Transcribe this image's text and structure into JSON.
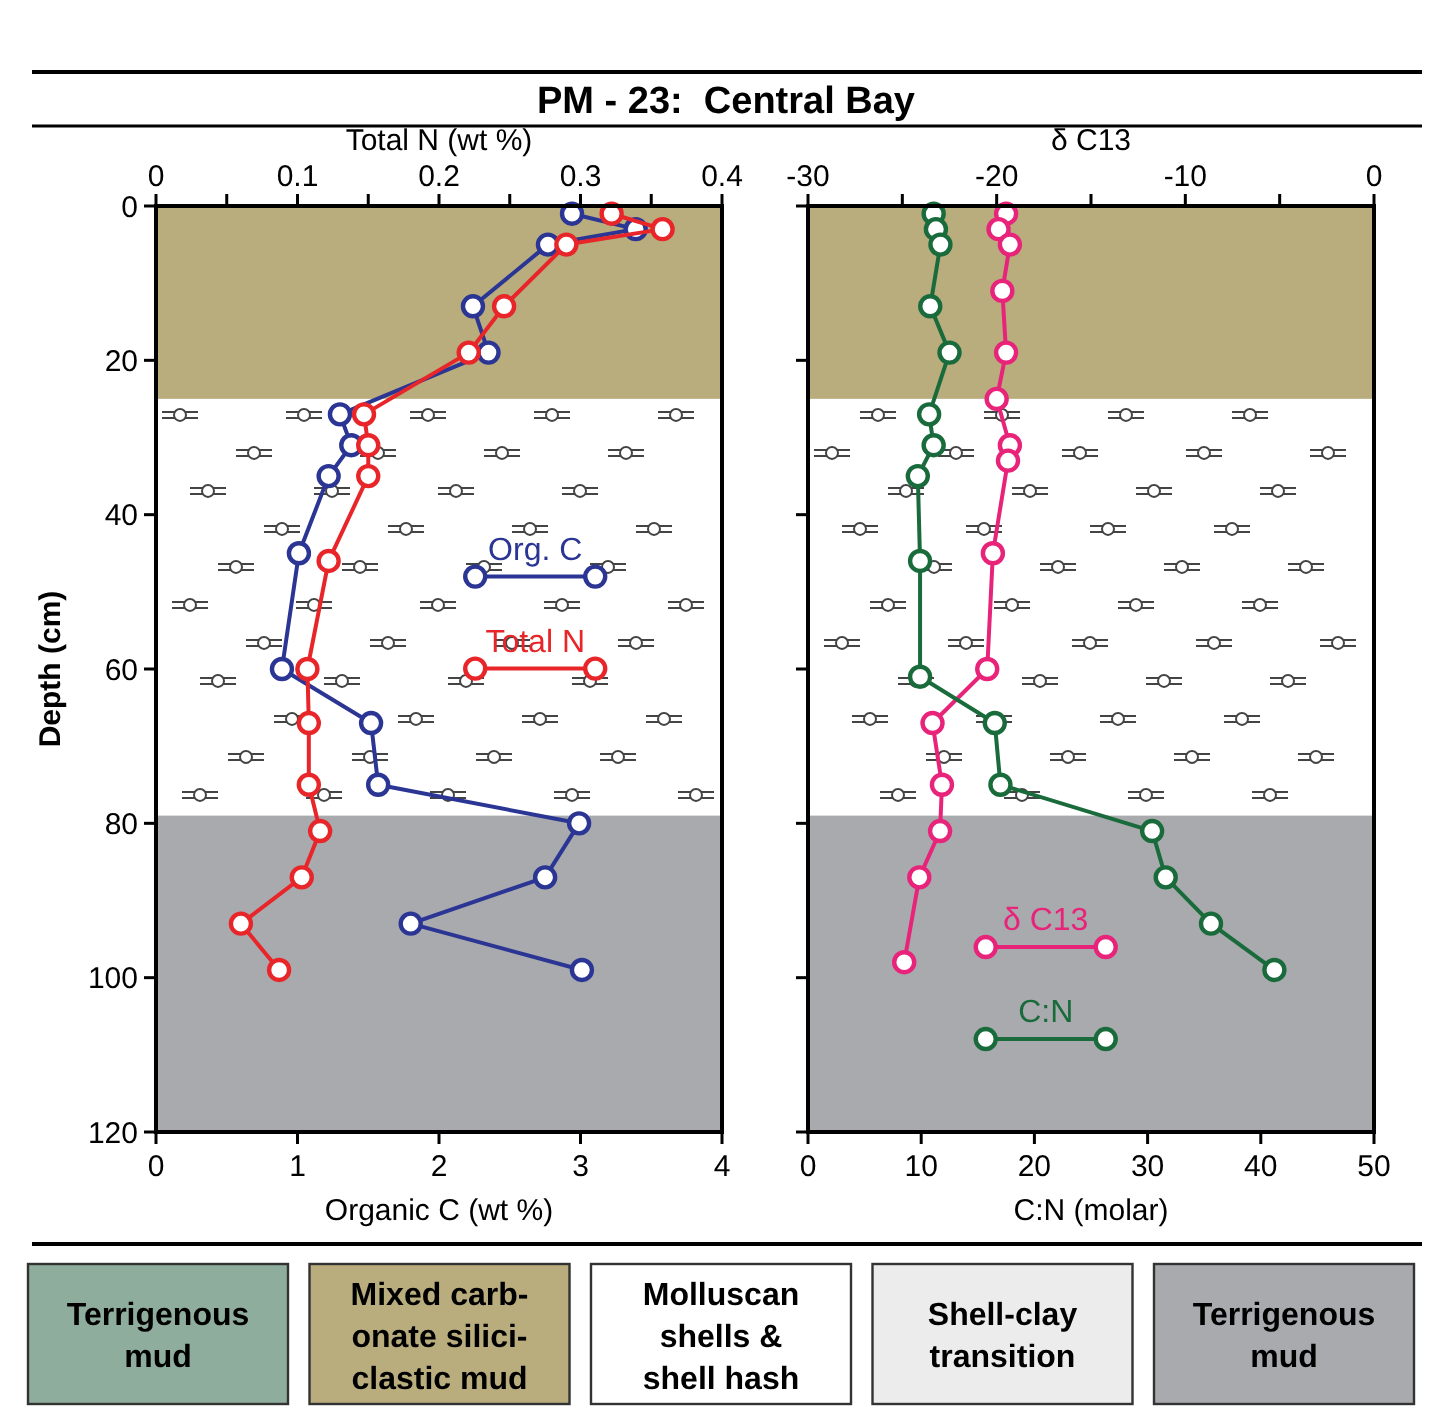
{
  "chart_data": [
    {
      "type": "line",
      "title": "PM - 23:  Central Bay",
      "xlabel": "Organic C (wt %)",
      "x2label": "Total N (wt %)",
      "ylabel": "Depth (cm)",
      "xlim": [
        0,
        4
      ],
      "xticks": [
        0,
        1,
        2,
        3,
        4
      ],
      "x2lim": [
        0,
        0.4
      ],
      "x2ticks": [
        0,
        {
          "value": 0.05,
          "label": null
        },
        0.1,
        {
          "value": 0.15,
          "label": null
        },
        0.2,
        {
          "value": 0.25,
          "label": null
        },
        0.3,
        {
          "value": 0.35,
          "label": null
        },
        0.4
      ],
      "ylim": [
        120,
        0
      ],
      "yticks": [
        0,
        20,
        40,
        60,
        80,
        100,
        120
      ],
      "marker": "circle",
      "legend": "right",
      "bands": [
        {
          "axis": "y",
          "from": 0,
          "to": 25,
          "color": "#b9ac7d"
        },
        {
          "axis": "y",
          "from": 25,
          "to": 79,
          "color": "#ffffff"
        },
        {
          "axis": "y",
          "from": 79,
          "to": 120,
          "color": "#a9aaae"
        }
      ],
      "series": [
        {
          "name": "Org. C",
          "color": "#2b3594",
          "x": [
            2.94,
            3.39,
            2.77,
            2.24,
            2.35,
            1.3,
            1.38,
            1.22,
            1.01,
            0.89,
            1.52,
            1.57,
            2.99,
            2.75,
            1.8,
            3.01
          ],
          "values": [
            1,
            3,
            5,
            13,
            19,
            27,
            31,
            35,
            45,
            60,
            67,
            75,
            80,
            87,
            93,
            99
          ]
        },
        {
          "name": "Total N",
          "color": "#e8262a",
          "axis": "x2",
          "x": [
            0.322,
            0.358,
            0.29,
            0.246,
            0.221,
            0.147,
            0.15,
            0.15,
            0.122,
            0.107,
            0.108,
            0.108,
            0.116,
            0.103,
            0.06,
            0.087
          ],
          "values": [
            1,
            3,
            5,
            13,
            19,
            27,
            31,
            35,
            46,
            60,
            67,
            75,
            81,
            87,
            93,
            99
          ]
        }
      ]
    },
    {
      "type": "line",
      "xlabel": "C:N (molar)",
      "x2label": "δ C13",
      "xlim": [
        0,
        50
      ],
      "xticks": [
        0,
        10,
        20,
        30,
        40,
        50
      ],
      "x2lim": [
        -30,
        0
      ],
      "x2ticks": [
        -30,
        {
          "value": -25,
          "label": null
        },
        -20,
        {
          "value": -15,
          "label": null
        },
        -10,
        {
          "value": -5,
          "label": null
        },
        0
      ],
      "ylim": [
        120,
        0
      ],
      "yticks": [
        0,
        20,
        40,
        60,
        80,
        100,
        120
      ],
      "tick_labels": "x",
      "marker": "circle",
      "legend": "bottom",
      "bands": [
        {
          "axis": "y",
          "from": 0,
          "to": 25,
          "color": "#b9ac7d"
        },
        {
          "axis": "y",
          "from": 25,
          "to": 79,
          "color": "#ffffff"
        },
        {
          "axis": "y",
          "from": 79,
          "to": 120,
          "color": "#a9aaae"
        }
      ],
      "series": [
        {
          "name": "δ C13",
          "color": "#e8237a",
          "axis": "x2",
          "x": [
            -19.5,
            -19.9,
            -19.3,
            -19.7,
            -19.5,
            -20,
            -19.3,
            -19.4,
            -20.2,
            -20.5,
            -23.4,
            -22.9,
            -23,
            -24.1,
            -24.9
          ],
          "values": [
            1,
            3,
            5,
            11,
            19,
            25,
            31,
            33,
            45,
            60,
            67,
            75,
            81,
            87,
            98
          ]
        },
        {
          "name": "C:N",
          "color": "#1a6b3c",
          "x": [
            11.1,
            11.3,
            11.7,
            10.8,
            12.5,
            10.7,
            11.1,
            9.7,
            9.9,
            9.9,
            16.5,
            17,
            30.4,
            31.6,
            35.6,
            41.2
          ],
          "values": [
            1,
            3,
            5,
            13,
            19,
            27,
            31,
            35,
            46,
            61,
            67,
            75,
            81,
            87,
            93,
            99
          ]
        }
      ]
    },
    {
      "type": "other",
      "annotations": [
        "Terrigenous\nmud",
        "Mixed carb-\nonate silici-\nclastic mud",
        "Molluscan\nshells &\nshell hash",
        "Shell-clay\ntransition",
        "Terrigenous\nmud"
      ]
    }
  ]
}
